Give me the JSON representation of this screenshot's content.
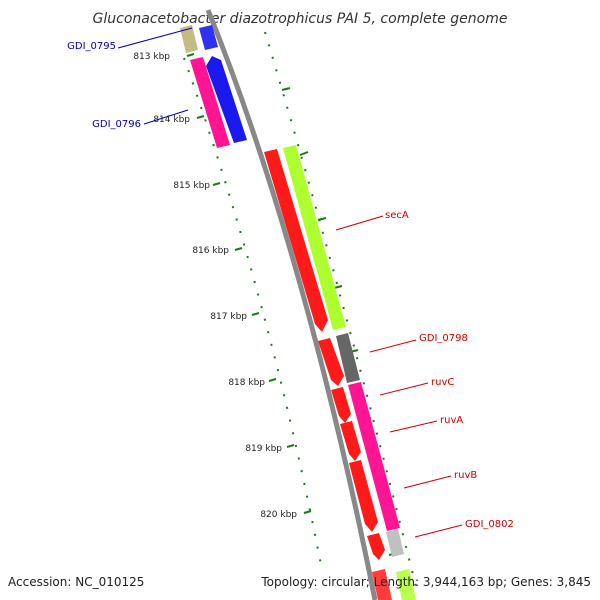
{
  "title": "Gluconacetobacter diazotrophicus PAI 5, complete genome",
  "footer": {
    "accession": "Accession: NC_010125",
    "summary": "Topology: circular; Length: 3,944,163 bp; Genes: 3,845"
  },
  "colors": {
    "backbone": "#888888",
    "tick": "#1a7a1a",
    "label_forward": "#cc0000",
    "label_reverse": "#0000bb"
  },
  "ticks": [
    {
      "label": "813 kbp"
    },
    {
      "label": "814 kbp"
    },
    {
      "label": "815 kbp"
    },
    {
      "label": "816 kbp"
    },
    {
      "label": "817 kbp"
    },
    {
      "label": "818 kbp"
    },
    {
      "label": "819 kbp"
    },
    {
      "label": "820 kbp"
    }
  ],
  "genes": [
    {
      "label": "GDI_0795",
      "strand": "reverse"
    },
    {
      "label": "GDI_0796",
      "strand": "reverse"
    },
    {
      "label": "secA",
      "strand": "forward"
    },
    {
      "label": "GDI_0798",
      "strand": "forward"
    },
    {
      "label": "ruvC",
      "strand": "forward"
    },
    {
      "label": "ruvA",
      "strand": "forward"
    },
    {
      "label": "ruvB",
      "strand": "forward"
    },
    {
      "label": "GDI_0802",
      "strand": "forward"
    }
  ]
}
